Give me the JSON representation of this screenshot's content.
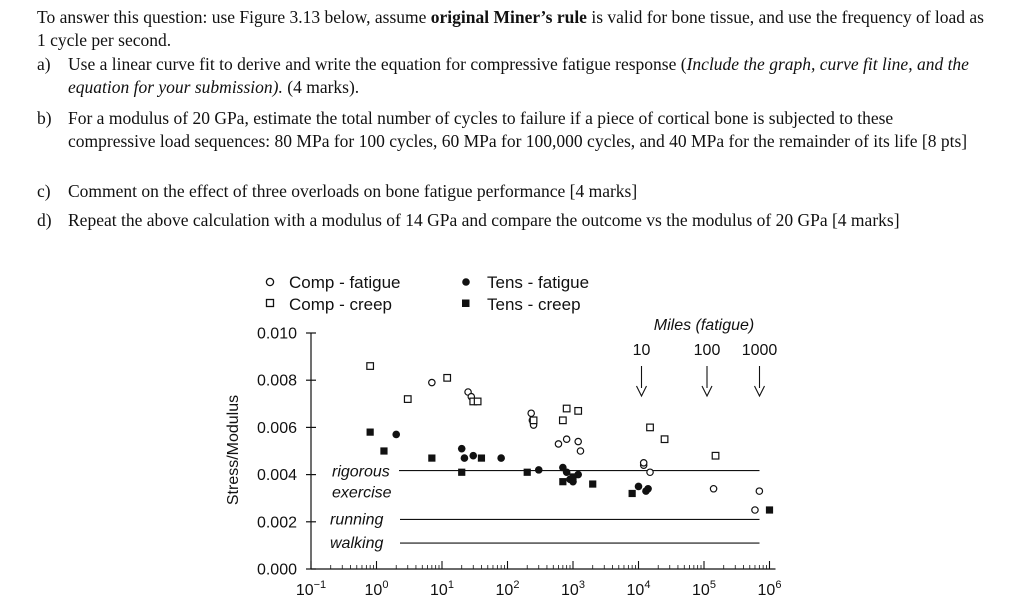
{
  "question": {
    "intro_pre": "To answer this question: use Figure 3.13 below, assume ",
    "intro_bold": "original Miner’s rule",
    "intro_post": " is valid for bone tissue, and use the frequency of load as 1 cycle per second.",
    "a_label": "a)",
    "a_pre": "Use a linear curve fit to derive and write the equation for compressive fatigue response (",
    "a_italic": "Include the graph, curve fit line, and the equation for your submission).",
    "a_post": " (4 marks).",
    "b_label": "b)",
    "b_text": "For a modulus of 20 GPa, estimate the total number of cycles to failure if a piece of cortical bone is subjected to these compressive load sequences: 80 MPa for 100 cycles, 60 MPa for 100,000 cycles, and 40 MPa for the remainder of its life [8 pts]",
    "c_label": "c)",
    "c_text": "Comment on the effect of three overloads on bone fatigue performance [4 marks]",
    "d_label": "d)",
    "d_text": "Repeat the above calculation with a modulus of 14 GPa and compare the outcome vs the modulus of 20 GPa [4 marks]"
  },
  "chart_data": {
    "type": "scatter",
    "title": "",
    "xlabel": "",
    "ylabel": "Stress/Modulus",
    "x_scale": "log",
    "xlim": [
      0.1,
      1000000
    ],
    "ylim": [
      0.0,
      0.01
    ],
    "x_ticks": [
      "10−1",
      "100",
      "101",
      "102",
      "103",
      "104",
      "105",
      "106"
    ],
    "x_tick_base": "10",
    "x_tick_exps": [
      "−1",
      "0",
      "1",
      "2",
      "3",
      "4",
      "5",
      "6"
    ],
    "y_ticks": [
      "0.000",
      "0.002",
      "0.004",
      "0.006",
      "0.008",
      "0.010"
    ],
    "legend": {
      "comp_fatigue": "Comp - fatigue",
      "comp_creep": "Comp - creep",
      "tens_fatigue": "Tens - fatigue",
      "tens_creep": "Tens - creep"
    },
    "reference_lines": [
      {
        "label": "rigorous exercise",
        "label_line1": "rigorous",
        "label_line2": "exercise",
        "value": 0.004
      },
      {
        "label": "running",
        "value": 0.0021
      },
      {
        "label": "walking",
        "value": 0.0011
      }
    ],
    "miles": {
      "title": "Miles (fatigue)",
      "markers": [
        {
          "label": "10",
          "x": 10000
        },
        {
          "label": "100",
          "x": 100000
        },
        {
          "label": "1000",
          "x": 1000000
        }
      ]
    },
    "series": [
      {
        "name": "Comp - fatigue",
        "marker": "open-circle",
        "points": [
          [
            7,
            0.0079
          ],
          [
            25,
            0.0075
          ],
          [
            28,
            0.0073
          ],
          [
            230,
            0.0066
          ],
          [
            240,
            0.0063
          ],
          [
            250,
            0.0061
          ],
          [
            600,
            0.0053
          ],
          [
            800,
            0.0055
          ],
          [
            1200,
            0.0054
          ],
          [
            1300,
            0.005
          ],
          [
            12000,
            0.0044
          ],
          [
            12000,
            0.0045
          ],
          [
            15000,
            0.0041
          ],
          [
            140000,
            0.0034
          ],
          [
            700000,
            0.0033
          ],
          [
            600000,
            0.0025
          ]
        ]
      },
      {
        "name": "Comp - creep",
        "marker": "open-square",
        "points": [
          [
            0.8,
            0.0086
          ],
          [
            3,
            0.0072
          ],
          [
            12,
            0.0081
          ],
          [
            30,
            0.0071
          ],
          [
            35,
            0.0071
          ],
          [
            250,
            0.0063
          ],
          [
            700,
            0.0063
          ],
          [
            800,
            0.0068
          ],
          [
            1200,
            0.0067
          ],
          [
            15000,
            0.006
          ],
          [
            25000,
            0.0055
          ],
          [
            150000,
            0.0048
          ]
        ]
      },
      {
        "name": "Tens - fatigue",
        "marker": "filled-circle",
        "points": [
          [
            2,
            0.0057
          ],
          [
            20,
            0.0051
          ],
          [
            22,
            0.0047
          ],
          [
            30,
            0.0048
          ],
          [
            80,
            0.0047
          ],
          [
            300,
            0.0042
          ],
          [
            700,
            0.0043
          ],
          [
            800,
            0.0041
          ],
          [
            900,
            0.0038
          ],
          [
            1000,
            0.0037
          ],
          [
            1200,
            0.004
          ],
          [
            10000,
            0.0035
          ],
          [
            13000,
            0.0033
          ],
          [
            14000,
            0.0034
          ]
        ]
      },
      {
        "name": "Tens - creep",
        "marker": "filled-square",
        "points": [
          [
            0.8,
            0.0058
          ],
          [
            1.3,
            0.005
          ],
          [
            7,
            0.0047
          ],
          [
            20,
            0.0041
          ],
          [
            40,
            0.0047
          ],
          [
            200,
            0.0041
          ],
          [
            700,
            0.0037
          ],
          [
            1000,
            0.0039
          ],
          [
            2000,
            0.0036
          ],
          [
            8000,
            0.0032
          ],
          [
            1000000,
            0.0025
          ]
        ]
      }
    ]
  }
}
